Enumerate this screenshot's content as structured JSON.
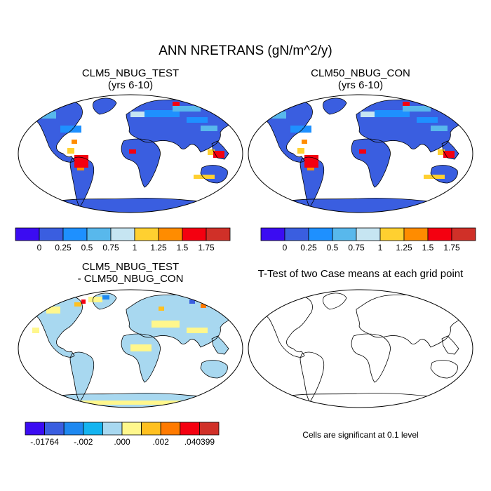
{
  "title": "ANN NRETRANS (gN/m^2/y)",
  "panels": [
    {
      "id": "test",
      "title_line1": "CLM5_NBUG_TEST",
      "title_line2": "(yrs 6-10)",
      "colorbar": {
        "colors": [
          "#3b0cf2",
          "#3a5ee0",
          "#1e90ff",
          "#58b8ec",
          "#c6e5f2",
          "#ffd030",
          "#ff8c00",
          "#f40010",
          "#d03028"
        ],
        "labels": [
          "0",
          "0.25",
          "0.5",
          "0.75",
          "1",
          "1.25",
          "1.5",
          "1.75"
        ]
      }
    },
    {
      "id": "control",
      "title_line1": "CLM50_NBUG_CON",
      "title_line2": "(yrs 6-10)",
      "colorbar": {
        "colors": [
          "#3b0cf2",
          "#3a5ee0",
          "#1e90ff",
          "#58b8ec",
          "#c6e5f2",
          "#ffd030",
          "#ff8c00",
          "#f40010",
          "#d03028"
        ],
        "labels": [
          "0",
          "0.25",
          "0.5",
          "0.75",
          "1",
          "1.25",
          "1.5",
          "1.75"
        ]
      }
    },
    {
      "id": "difference",
      "title_line1": "CLM5_NBUG_TEST",
      "title_line2": "- CLM50_NBUG_CON",
      "colorbar": {
        "colors": [
          "#3b0cf2",
          "#3a5ee0",
          "#1e88f0",
          "#14b4f0",
          "#a8d8f0",
          "#fff78c",
          "#ffc020",
          "#ff7a00",
          "#f40010",
          "#d03028"
        ],
        "labels": [
          "-.01764",
          "",
          "-.002",
          "",
          ".000",
          "",
          ".002",
          "",
          ".040399"
        ]
      }
    },
    {
      "id": "ttest",
      "title_line1": "T-Test of two Case means at each grid point",
      "note": "Cells are significant at 0.1 level"
    }
  ]
}
